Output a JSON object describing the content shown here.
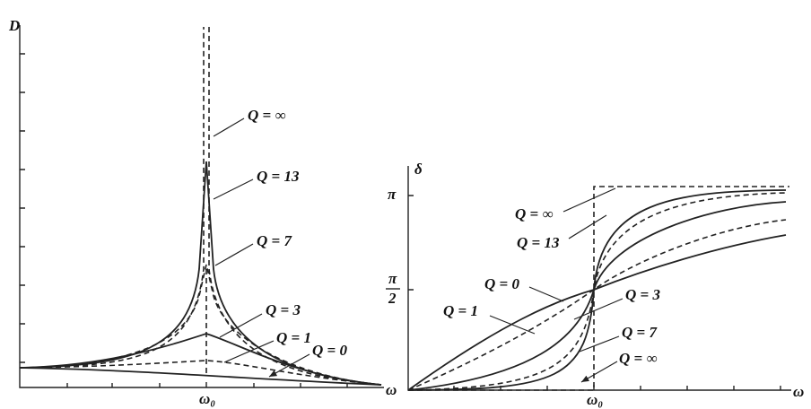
{
  "left": {
    "y_label": "D",
    "x_label": "ω",
    "x_tick": "ω₀",
    "curve_labels": [
      "Q = ∞",
      "Q = 13",
      "Q = 7",
      "Q = 3",
      "Q = 1",
      "Q = 0"
    ]
  },
  "right": {
    "y_label": "δ",
    "x_label": "ω",
    "x_tick": "ω₀",
    "y_tick_pi": "π",
    "y_tick_half_num": "π",
    "y_tick_half_den": "2",
    "curve_labels": [
      "Q = ∞",
      "Q = 13",
      "Q = 0",
      "Q = 1",
      "Q = 3",
      "Q = 7",
      "Q = ∞"
    ]
  }
}
